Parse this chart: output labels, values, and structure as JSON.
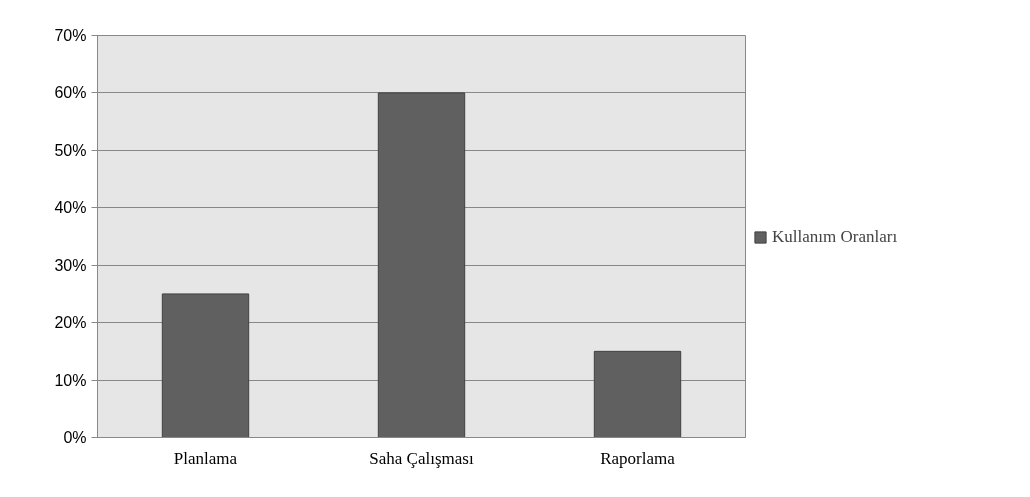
{
  "chart_data": {
    "type": "bar",
    "categories": [
      "Planlama",
      "Saha Çalışması",
      "Raporlama"
    ],
    "series": [
      {
        "name": "Kullanım Oranları",
        "color": "#606060",
        "values": [
          0.25,
          0.6,
          0.15
        ]
      }
    ],
    "ylim": [
      0,
      0.7
    ],
    "yticks": [
      {
        "value": 0,
        "label": "0%"
      },
      {
        "value": 0.1,
        "label": "10%"
      },
      {
        "value": 0.2,
        "label": "20%"
      },
      {
        "value": 0.3,
        "label": "30%"
      },
      {
        "value": 0.4,
        "label": "40%"
      },
      {
        "value": 0.5,
        "label": "50%"
      },
      {
        "value": 0.6,
        "label": "60%"
      },
      {
        "value": 0.7,
        "label": "70%"
      }
    ],
    "grid": "y",
    "legend": "right"
  }
}
